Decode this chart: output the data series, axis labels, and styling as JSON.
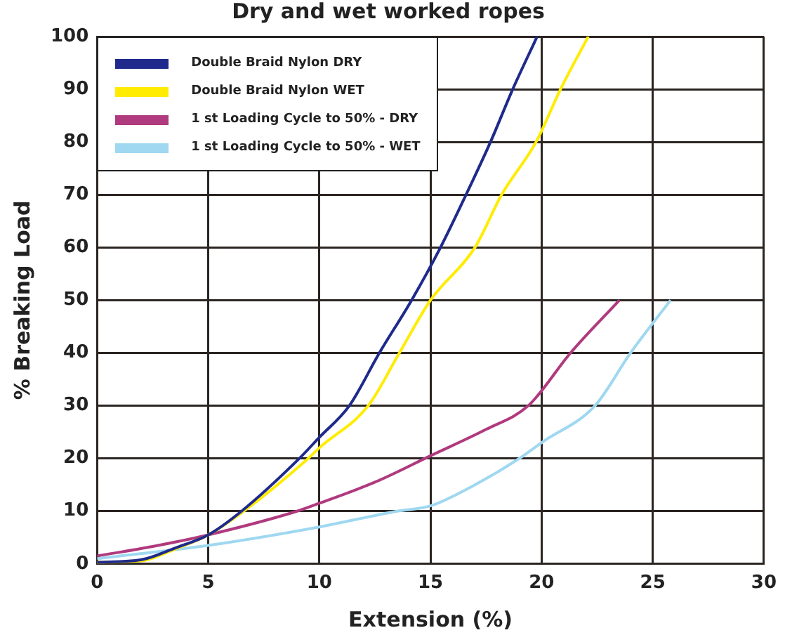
{
  "chart_data": {
    "type": "line",
    "title": "Dry and wet worked ropes",
    "xlabel": "Extension (%)",
    "ylabel": "% Breaking Load",
    "xlim": [
      0,
      30
    ],
    "xticks": [
      0,
      5,
      10,
      15,
      20,
      25,
      30
    ],
    "ylim": [
      0,
      100
    ],
    "yticks": [
      0,
      10,
      20,
      30,
      40,
      50,
      60,
      70,
      80,
      90,
      100
    ],
    "grid": true,
    "legend": "top left",
    "marker": "none",
    "line_style": "solid",
    "series": [
      {
        "name": "Double Braid Nylon DRY",
        "color": "#1f2a8c",
        "x": [
          0,
          2,
          3.5,
          5,
          6.5,
          9.1,
          10,
          11.35,
          12.7,
          14.15,
          15.45,
          16.6,
          17.7,
          18.7,
          19.8
        ],
        "values": [
          0.3,
          0.8,
          3,
          5.5,
          10,
          20,
          24,
          30,
          40,
          50,
          60,
          70,
          80,
          90,
          100
        ]
      },
      {
        "name": "Double Braid Nylon WET",
        "color": "#ffec00",
        "x": [
          0,
          2,
          3.5,
          5,
          6.6,
          9.5,
          10,
          12.2,
          13.6,
          15,
          17,
          18.2,
          19.75,
          20.85,
          22.1
        ],
        "values": [
          0.3,
          0.6,
          2.8,
          5.5,
          10,
          20,
          22,
          30,
          40,
          50,
          60,
          70,
          80,
          90,
          100
        ]
      },
      {
        "name": "1 st Loading Cycle to 50% - DRY",
        "color": "#b03a7e",
        "x": [
          0,
          2.5,
          5,
          9,
          10,
          12.5,
          15,
          17.5,
          19.4,
          21.3,
          23.5
        ],
        "values": [
          1.5,
          3.3,
          5.5,
          10,
          11.5,
          15.5,
          20.5,
          25.5,
          30,
          40,
          50
        ]
      },
      {
        "name": "1 st Loading Cycle to 50% - WET",
        "color": "#9fd8f0",
        "x": [
          0,
          5,
          10,
          13.5,
          15,
          17,
          19,
          20,
          22.4,
          24,
          25.8
        ],
        "values": [
          1,
          3.5,
          7,
          10,
          11,
          15,
          20,
          23,
          30,
          40,
          50
        ]
      }
    ]
  }
}
